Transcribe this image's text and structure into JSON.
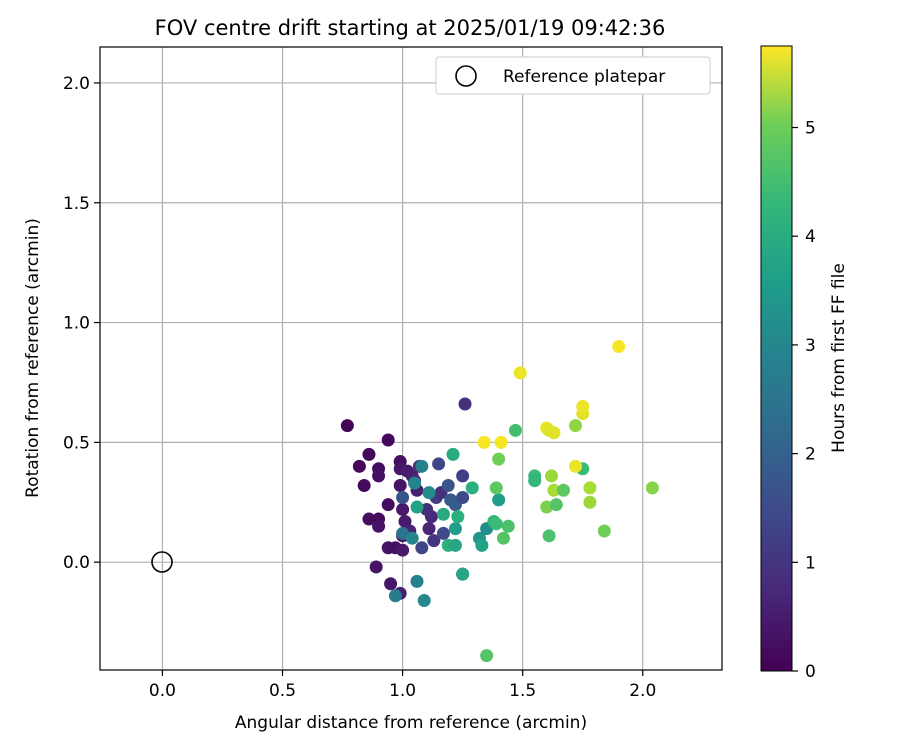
{
  "chart_data": {
    "type": "scatter",
    "title": "FOV centre drift starting at 2025/01/19 09:42:36",
    "xlabel": "Angular distance from reference (arcmin)",
    "ylabel": "Rotation from reference (arcmin)",
    "xlim": [
      -0.26,
      2.33
    ],
    "ylim": [
      -0.45,
      2.15
    ],
    "xticks": [
      "0.0",
      "0.5",
      "1.0",
      "1.5",
      "2.0"
    ],
    "yticks": [
      "0.0",
      "0.5",
      "1.0",
      "1.5",
      "2.0"
    ],
    "grid": true,
    "legend": {
      "placement": "top-right",
      "entries": [
        "Reference platepar"
      ]
    },
    "reference_point": {
      "x": 0.0,
      "y": 0.0,
      "label": "Reference platepar"
    },
    "colorbar": {
      "label": "Hours from first FF file",
      "colormap": "viridis",
      "range": [
        0,
        5.75
      ],
      "ticks": [
        "0",
        "1",
        "2",
        "3",
        "4",
        "5"
      ]
    },
    "points": [
      {
        "x": 0.77,
        "y": 0.57,
        "c": 0.05
      },
      {
        "x": 0.82,
        "y": 0.4,
        "c": 0.1
      },
      {
        "x": 0.84,
        "y": 0.32,
        "c": 0.15
      },
      {
        "x": 0.86,
        "y": 0.45,
        "c": 0.1
      },
      {
        "x": 0.86,
        "y": 0.18,
        "c": 0.2
      },
      {
        "x": 0.9,
        "y": 0.39,
        "c": 0.2
      },
      {
        "x": 0.9,
        "y": 0.36,
        "c": 0.25
      },
      {
        "x": 0.9,
        "y": 0.18,
        "c": 0.15
      },
      {
        "x": 0.9,
        "y": 0.15,
        "c": 0.3
      },
      {
        "x": 0.89,
        "y": -0.02,
        "c": 0.3
      },
      {
        "x": 0.94,
        "y": 0.51,
        "c": 0.1
      },
      {
        "x": 0.94,
        "y": 0.24,
        "c": 0.2
      },
      {
        "x": 0.94,
        "y": 0.06,
        "c": 0.3
      },
      {
        "x": 0.95,
        "y": -0.09,
        "c": 0.35
      },
      {
        "x": 0.97,
        "y": 0.06,
        "c": 0.25
      },
      {
        "x": 0.99,
        "y": 0.42,
        "c": 0.25
      },
      {
        "x": 0.99,
        "y": 0.39,
        "c": 0.35
      },
      {
        "x": 0.99,
        "y": 0.32,
        "c": 0.3
      },
      {
        "x": 1.0,
        "y": 0.22,
        "c": 0.4
      },
      {
        "x": 1.0,
        "y": 0.11,
        "c": 0.35
      },
      {
        "x": 1.0,
        "y": 0.05,
        "c": 0.4
      },
      {
        "x": 0.99,
        "y": -0.13,
        "c": 0.5
      },
      {
        "x": 1.01,
        "y": 0.17,
        "c": 0.4
      },
      {
        "x": 1.02,
        "y": 0.38,
        "c": 0.45
      },
      {
        "x": 1.04,
        "y": 0.36,
        "c": 0.5
      },
      {
        "x": 1.05,
        "y": 0.34,
        "c": 0.6
      },
      {
        "x": 1.03,
        "y": 0.13,
        "c": 0.55
      },
      {
        "x": 1.06,
        "y": 0.3,
        "c": 0.5
      },
      {
        "x": 1.07,
        "y": 0.4,
        "c": 0.7
      },
      {
        "x": 1.08,
        "y": 0.06,
        "c": 1.2
      },
      {
        "x": 1.1,
        "y": 0.22,
        "c": 0.8
      },
      {
        "x": 1.11,
        "y": 0.14,
        "c": 0.6
      },
      {
        "x": 1.12,
        "y": 0.19,
        "c": 0.7
      },
      {
        "x": 1.13,
        "y": 0.09,
        "c": 0.9
      },
      {
        "x": 1.14,
        "y": 0.27,
        "c": 1.0
      },
      {
        "x": 1.15,
        "y": 0.41,
        "c": 1.2
      },
      {
        "x": 1.16,
        "y": 0.29,
        "c": 0.8
      },
      {
        "x": 1.17,
        "y": 0.12,
        "c": 1.3
      },
      {
        "x": 1.19,
        "y": 0.32,
        "c": 1.5
      },
      {
        "x": 1.2,
        "y": 0.26,
        "c": 1.6
      },
      {
        "x": 1.22,
        "y": 0.24,
        "c": 1.7
      },
      {
        "x": 1.25,
        "y": 0.36,
        "c": 1.1
      },
      {
        "x": 1.25,
        "y": 0.27,
        "c": 1.3
      },
      {
        "x": 1.26,
        "y": 0.66,
        "c": 0.8
      },
      {
        "x": 1.25,
        "y": -0.05,
        "c": 1.2
      },
      {
        "x": 1.0,
        "y": 0.27,
        "c": 1.5
      },
      {
        "x": 1.0,
        "y": 0.12,
        "c": 2.2
      },
      {
        "x": 0.97,
        "y": -0.14,
        "c": 2.4
      },
      {
        "x": 1.04,
        "y": 0.1,
        "c": 2.6
      },
      {
        "x": 1.06,
        "y": -0.08,
        "c": 2.5
      },
      {
        "x": 1.05,
        "y": 0.33,
        "c": 2.6
      },
      {
        "x": 1.08,
        "y": 0.4,
        "c": 2.5
      },
      {
        "x": 1.09,
        "y": -0.16,
        "c": 2.7
      },
      {
        "x": 1.11,
        "y": 0.29,
        "c": 2.8
      },
      {
        "x": 1.06,
        "y": 0.23,
        "c": 3.3
      },
      {
        "x": 1.17,
        "y": 0.2,
        "c": 3.5
      },
      {
        "x": 1.19,
        "y": 0.07,
        "c": 3.6
      },
      {
        "x": 1.21,
        "y": 0.45,
        "c": 3.5
      },
      {
        "x": 1.22,
        "y": 0.07,
        "c": 3.4
      },
      {
        "x": 1.22,
        "y": 0.14,
        "c": 3.2
      },
      {
        "x": 1.23,
        "y": 0.19,
        "c": 3.6
      },
      {
        "x": 1.25,
        "y": -0.05,
        "c": 3.4
      },
      {
        "x": 1.29,
        "y": 0.31,
        "c": 3.6
      },
      {
        "x": 1.32,
        "y": 0.1,
        "c": 3.0
      },
      {
        "x": 1.33,
        "y": 0.07,
        "c": 3.3
      },
      {
        "x": 1.35,
        "y": 0.14,
        "c": 2.8
      },
      {
        "x": 1.38,
        "y": 0.17,
        "c": 3.8
      },
      {
        "x": 1.39,
        "y": 0.16,
        "c": 3.9
      },
      {
        "x": 1.4,
        "y": 0.26,
        "c": 3.2
      },
      {
        "x": 1.35,
        "y": -0.39,
        "c": 4.2
      },
      {
        "x": 1.39,
        "y": 0.31,
        "c": 4.3
      },
      {
        "x": 1.4,
        "y": 0.43,
        "c": 4.5
      },
      {
        "x": 1.42,
        "y": 0.1,
        "c": 4.2
      },
      {
        "x": 1.44,
        "y": 0.15,
        "c": 4.1
      },
      {
        "x": 1.47,
        "y": 0.55,
        "c": 4.0
      },
      {
        "x": 1.55,
        "y": 0.36,
        "c": 3.9
      },
      {
        "x": 1.55,
        "y": 0.34,
        "c": 3.8
      },
      {
        "x": 1.6,
        "y": 0.23,
        "c": 4.6
      },
      {
        "x": 1.61,
        "y": 0.11,
        "c": 4.1
      },
      {
        "x": 1.62,
        "y": 0.36,
        "c": 4.9
      },
      {
        "x": 1.63,
        "y": 0.3,
        "c": 5.0
      },
      {
        "x": 1.64,
        "y": 0.24,
        "c": 4.2
      },
      {
        "x": 1.67,
        "y": 0.3,
        "c": 4.3
      },
      {
        "x": 1.72,
        "y": 0.57,
        "c": 4.8
      },
      {
        "x": 1.75,
        "y": 0.39,
        "c": 3.9
      },
      {
        "x": 1.78,
        "y": 0.31,
        "c": 5.0
      },
      {
        "x": 1.78,
        "y": 0.25,
        "c": 4.9
      },
      {
        "x": 1.84,
        "y": 0.13,
        "c": 4.5
      },
      {
        "x": 2.04,
        "y": 0.31,
        "c": 4.7
      },
      {
        "x": 1.34,
        "y": 0.5,
        "c": 5.7
      },
      {
        "x": 1.41,
        "y": 0.5,
        "c": 5.7
      },
      {
        "x": 1.49,
        "y": 0.79,
        "c": 5.6
      },
      {
        "x": 1.6,
        "y": 0.56,
        "c": 5.6
      },
      {
        "x": 1.61,
        "y": 0.55,
        "c": 5.5
      },
      {
        "x": 1.63,
        "y": 0.54,
        "c": 5.5
      },
      {
        "x": 1.72,
        "y": 0.4,
        "c": 5.6
      },
      {
        "x": 1.75,
        "y": 0.62,
        "c": 5.5
      },
      {
        "x": 1.75,
        "y": 0.65,
        "c": 5.6
      },
      {
        "x": 1.9,
        "y": 0.9,
        "c": 5.7
      }
    ]
  }
}
